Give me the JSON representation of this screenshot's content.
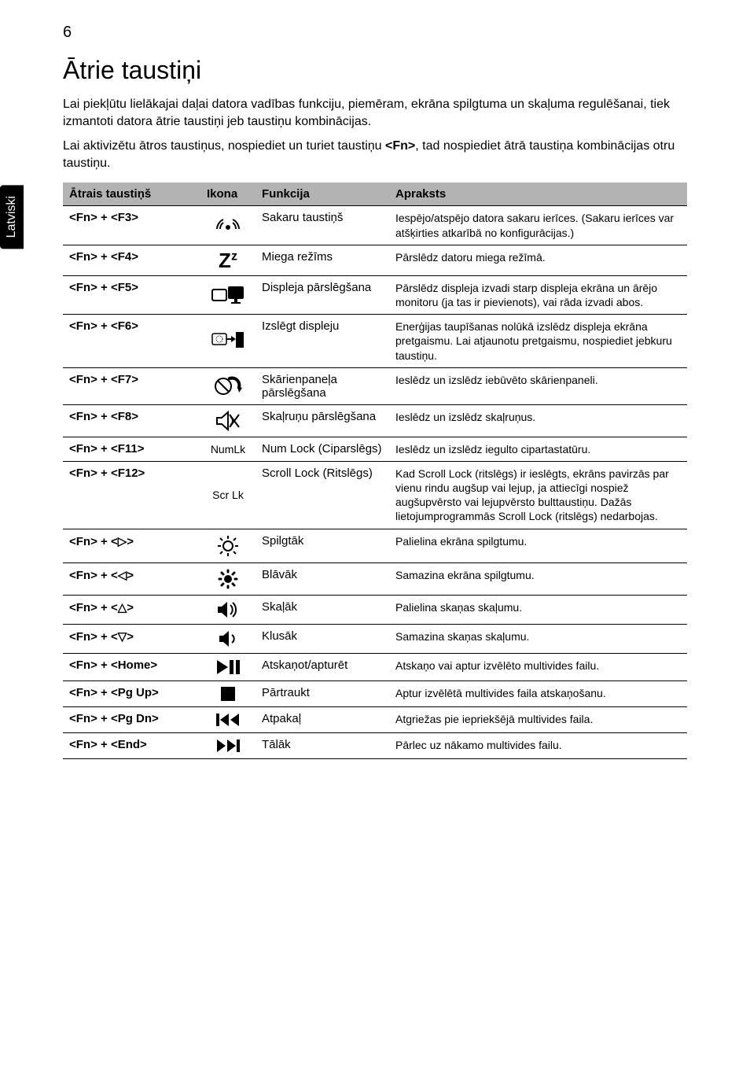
{
  "page_number": "6",
  "sidebar_label": "Latviski",
  "title": "Ātrie taustiņi",
  "intro_p1": "Lai piekļūtu lielākajai daļai datora vadības funkciju, piemēram, ekrāna spilgtuma un skaļuma regulēšanai, tiek izmantoti datora ātrie taustiņi jeb taustiņu kombinācijas.",
  "intro_p2_a": "Lai aktivizētu ātros taustiņus, nospiediet un turiet taustiņu ",
  "intro_p2_b": "<Fn>",
  "intro_p2_c": ", tad nospiediet ātrā taustiņa kombinācijas otru taustiņu.",
  "table": {
    "headers": {
      "key": "Ātrais taustiņš",
      "icon": "Ikona",
      "func": "Funkcija",
      "desc": "Apraksts"
    },
    "rows": [
      {
        "key": "<Fn> + <F3>",
        "icon": "wifi",
        "func": "Sakaru taustiņš",
        "desc": "Iespējo/atspējo datora sakaru ierīces. (Sakaru ierīces var atšķirties atkarībā no konfigurācijas.)"
      },
      {
        "key": "<Fn> + <F4>",
        "icon": "sleep",
        "func": "Miega režīms",
        "desc": "Pārslēdz datoru miega režīmā."
      },
      {
        "key": "<Fn> + <F5>",
        "icon": "displaysw",
        "func": "Displeja pārslēgšana",
        "desc": "Pārslēdz displeja izvadi starp displeja ekrāna un ārējo monitoru (ja tas ir pievienots), vai rāda izvadi abos."
      },
      {
        "key": "<Fn> + <F6>",
        "icon": "dispoff",
        "func": "Izslēgt displeju",
        "desc": "Enerģijas taupīšanas nolūkā izslēdz displeja ekrāna pretgaismu. Lai atjaunotu pretgaismu, nospiediet jebkuru taustiņu."
      },
      {
        "key": "<Fn> + <F7>",
        "icon": "touchpad",
        "func": "Skārienpaneļa pārslēgšana",
        "desc": "Ieslēdz un izslēdz iebūvēto skārienpaneli."
      },
      {
        "key": "<Fn> + <F8>",
        "icon": "speaker",
        "func": "Skaļruņu pārslēgšana",
        "desc": "Ieslēdz un izslēdz skaļruņus."
      },
      {
        "key": "<Fn> + <F11>",
        "icon": "numlk",
        "func": "Num Lock (Ciparslēgs)",
        "desc": "Ieslēdz un izslēdz iegulto cipartastatūru."
      },
      {
        "key": "<Fn> + <F12>",
        "icon": "scrlk",
        "func": "Scroll Lock (Ritslēgs)",
        "desc": "Kad Scroll Lock (ritslēgs) ir ieslēgts, ekrāns pavirzās par vienu rindu augšup vai lejup, ja attiecīgi nospiež augšupvērsto vai lejupvērsto bulttaustiņu. Dažās lietojumprogrammās Scroll Lock (ritslēgs) nedarbojas."
      },
      {
        "key": "<Fn> + <▷>",
        "icon": "brightup",
        "func": "Spilgtāk",
        "desc": "Palielina ekrāna spilgtumu."
      },
      {
        "key": "<Fn> + <◁>",
        "icon": "brightdn",
        "func": "Blāvāk",
        "desc": "Samazina ekrāna spilgtumu."
      },
      {
        "key": "<Fn> + <△>",
        "icon": "volup",
        "func": "Skaļāk",
        "desc": "Palielina skaņas skaļumu."
      },
      {
        "key": "<Fn> + <▽>",
        "icon": "voldn",
        "func": "Klusāk",
        "desc": "Samazina skaņas skaļumu."
      },
      {
        "key": "<Fn> + <Home>",
        "icon": "playpause",
        "func": "Atskaņot/apturēt",
        "desc": "Atskaņo vai aptur izvēlēto multivides failu."
      },
      {
        "key": "<Fn> + <Pg Up>",
        "icon": "stop",
        "func": "Pārtraukt",
        "desc": "Aptur izvēlētā multivides faila atskaņošanu."
      },
      {
        "key": "<Fn> + <Pg Dn>",
        "icon": "prev",
        "func": "Atpakaļ",
        "desc": "Atgriežas pie iepriekšējā multivides faila."
      },
      {
        "key": "<Fn> + <End>",
        "icon": "next",
        "func": "Tālāk",
        "desc": "Pārlec uz nākamo multivides failu."
      }
    ]
  },
  "colors": {
    "header_bg": "#b3b3b3",
    "text": "#000000",
    "bg": "#ffffff"
  }
}
